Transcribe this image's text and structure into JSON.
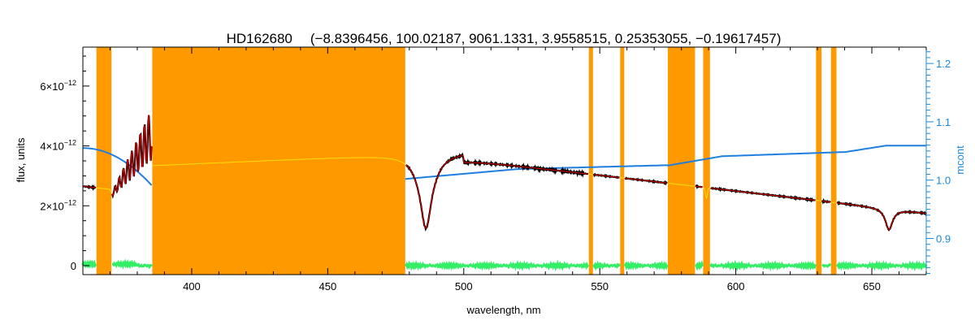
{
  "chart_data": {
    "type": "line",
    "title": "HD162680",
    "subtitle": "(−8.8396456, 100.02187, 9061.1331, 3.9558515, 0.25353055, −0.19617457)",
    "xlabel": "wavelength, nm",
    "ylabel": "flux, units",
    "y2label": "mcont",
    "xlim": [
      360,
      670
    ],
    "ylim": [
      -3e-13,
      7.3e-12
    ],
    "y2lim": [
      0.838,
      1.228
    ],
    "x_ticks": [
      400,
      450,
      500,
      550,
      600,
      650
    ],
    "x_tick_labels": [
      "400",
      "450",
      "500",
      "550",
      "600",
      "650"
    ],
    "y_ticks": [
      0,
      2e-12,
      4e-12,
      6e-12
    ],
    "y_tick_labels": [
      {
        "mant": "0",
        "exp": ""
      },
      {
        "mant": "2×10",
        "exp": "−12"
      },
      {
        "mant": "4×10",
        "exp": "−12"
      },
      {
        "mant": "6×10",
        "exp": "−12"
      }
    ],
    "y2_ticks": [
      0.9,
      1.0,
      1.1,
      1.2
    ],
    "y2_tick_labels": [
      "0.9",
      "1.0",
      "1.1",
      "1.2"
    ],
    "masked_regions": [
      [
        365,
        370.5
      ],
      [
        385.5,
        478.5
      ],
      [
        546,
        547.5
      ],
      [
        557.5,
        559
      ],
      [
        575,
        585
      ],
      [
        588,
        590.5
      ],
      [
        629.5,
        631.5
      ],
      [
        635,
        637
      ]
    ],
    "series": [
      {
        "kind": "observed",
        "color": "#000000"
      },
      {
        "kind": "model",
        "color": "#d40000"
      },
      {
        "kind": "model-masked",
        "color": "#ffe000"
      },
      {
        "kind": "continuum",
        "axis": "right",
        "color": "#1f7fe0"
      },
      {
        "kind": "residual",
        "color": "#33ee66"
      }
    ],
    "colors": {
      "mask": "#ff9900",
      "axis": "#000000",
      "right_axis": "#1a8ad8"
    }
  }
}
